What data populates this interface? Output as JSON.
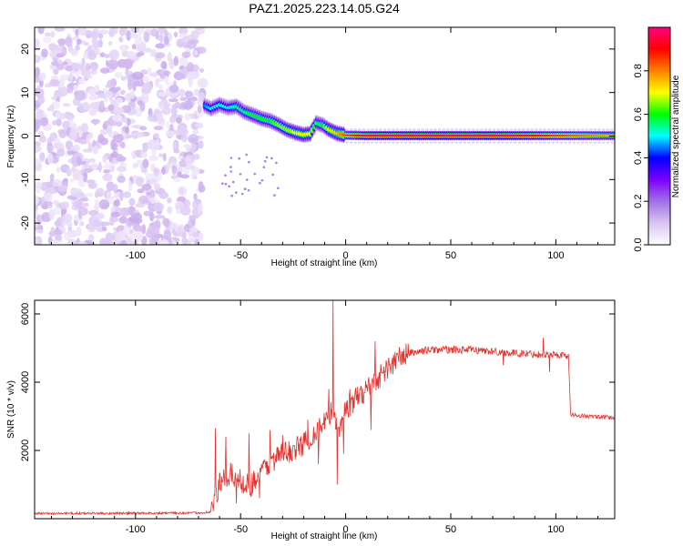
{
  "figure_title": "PAZ1.2025.223.14.05.G24",
  "chart_data": [
    {
      "type": "heatmap",
      "title": "",
      "xlabel": "Height of straight line (km)",
      "ylabel": "Frequency (Hz)",
      "xlim": [
        -148,
        128
      ],
      "ylim": [
        -25,
        25
      ],
      "xticks": [
        -100,
        -50,
        0,
        50,
        100
      ],
      "yticks": [
        -20,
        -10,
        0,
        10,
        20
      ],
      "colorbar": {
        "label": "Normalized spectral amplitude",
        "range": [
          0,
          1
        ],
        "ticks": [
          0.0,
          0.2,
          0.4,
          0.6,
          0.8
        ],
        "colors": [
          "#ffffff",
          "#d9c4f2",
          "#a070e6",
          "#7a00ff",
          "#0000ff",
          "#00ffff",
          "#00ff00",
          "#ffff00",
          "#ff7f00",
          "#ff0000",
          "#ff007f"
        ]
      },
      "noise_region": {
        "x_range": [
          -148,
          -68
        ],
        "f_range": [
          -25,
          25
        ],
        "amplitude": 0.2
      },
      "ridge": [
        {
          "x": -67,
          "f": 7.0,
          "a": 0.45
        },
        {
          "x": -64,
          "f": 6.3,
          "a": 0.5
        },
        {
          "x": -60,
          "f": 7.2,
          "a": 0.5
        },
        {
          "x": -56,
          "f": 6.5,
          "a": 0.5
        },
        {
          "x": -52,
          "f": 6.8,
          "a": 0.55
        },
        {
          "x": -48,
          "f": 5.5,
          "a": 0.55
        },
        {
          "x": -44,
          "f": 4.8,
          "a": 0.6
        },
        {
          "x": -40,
          "f": 4.0,
          "a": 0.6
        },
        {
          "x": -36,
          "f": 3.5,
          "a": 0.6
        },
        {
          "x": -32,
          "f": 2.6,
          "a": 0.65
        },
        {
          "x": -28,
          "f": 1.5,
          "a": 0.65
        },
        {
          "x": -24,
          "f": 0.8,
          "a": 0.7
        },
        {
          "x": -20,
          "f": 0.3,
          "a": 0.7
        },
        {
          "x": -17,
          "f": 0.5,
          "a": 0.7
        },
        {
          "x": -14,
          "f": 3.0,
          "a": 0.55
        },
        {
          "x": -11,
          "f": 2.5,
          "a": 0.6
        },
        {
          "x": -8,
          "f": 1.5,
          "a": 0.7
        },
        {
          "x": -4,
          "f": 0.6,
          "a": 0.75
        },
        {
          "x": 0,
          "f": 0.2,
          "a": 0.85
        },
        {
          "x": 10,
          "f": 0.1,
          "a": 0.95
        },
        {
          "x": 40,
          "f": 0.1,
          "a": 0.97
        },
        {
          "x": 80,
          "f": 0.1,
          "a": 0.95
        },
        {
          "x": 105,
          "f": 0.1,
          "a": 0.85
        },
        {
          "x": 128,
          "f": 0.1,
          "a": 0.75
        }
      ]
    },
    {
      "type": "line",
      "title": "",
      "xlabel": "Height of straight line (km)",
      "ylabel": "SNR (10 * v/v)",
      "xlim": [
        -148,
        128
      ],
      "ylim": [
        0,
        6400
      ],
      "xticks": [
        -100,
        -50,
        0,
        50,
        100
      ],
      "yticks": [
        2000,
        4000,
        6000
      ],
      "line_color": "#e8302c",
      "envelope": [
        {
          "x": -148,
          "y": 150
        },
        {
          "x": -100,
          "y": 160
        },
        {
          "x": -70,
          "y": 170
        },
        {
          "x": -64,
          "y": 200
        },
        {
          "x": -60,
          "y": 1000
        },
        {
          "x": -55,
          "y": 1300
        },
        {
          "x": -50,
          "y": 1100
        },
        {
          "x": -45,
          "y": 1000
        },
        {
          "x": -40,
          "y": 1400
        },
        {
          "x": -35,
          "y": 1700
        },
        {
          "x": -30,
          "y": 1900
        },
        {
          "x": -25,
          "y": 2000
        },
        {
          "x": -20,
          "y": 2200
        },
        {
          "x": -15,
          "y": 2500
        },
        {
          "x": -10,
          "y": 2800
        },
        {
          "x": -6,
          "y": 3200
        },
        {
          "x": -3,
          "y": 2600
        },
        {
          "x": 0,
          "y": 3200
        },
        {
          "x": 5,
          "y": 3500
        },
        {
          "x": 10,
          "y": 3800
        },
        {
          "x": 15,
          "y": 4100
        },
        {
          "x": 20,
          "y": 4400
        },
        {
          "x": 25,
          "y": 4700
        },
        {
          "x": 30,
          "y": 4850
        },
        {
          "x": 40,
          "y": 4950
        },
        {
          "x": 60,
          "y": 4950
        },
        {
          "x": 80,
          "y": 4850
        },
        {
          "x": 100,
          "y": 4800
        },
        {
          "x": 106,
          "y": 4780
        },
        {
          "x": 107,
          "y": 3050
        },
        {
          "x": 115,
          "y": 3000
        },
        {
          "x": 128,
          "y": 2950
        }
      ],
      "spikes": [
        {
          "x": -62,
          "y": 2650
        },
        {
          "x": -57,
          "y": 2400
        },
        {
          "x": -52,
          "y": 450
        },
        {
          "x": -46,
          "y": 2500
        },
        {
          "x": -41,
          "y": 600
        },
        {
          "x": -36,
          "y": 2600
        },
        {
          "x": -30,
          "y": 2450
        },
        {
          "x": -18,
          "y": 2900
        },
        {
          "x": -13,
          "y": 1600
        },
        {
          "x": -8,
          "y": 3800
        },
        {
          "x": -6,
          "y": 6400
        },
        {
          "x": -4,
          "y": 1000
        },
        {
          "x": -1,
          "y": 1900
        },
        {
          "x": 2,
          "y": 3800
        },
        {
          "x": 12,
          "y": 2600
        },
        {
          "x": 14,
          "y": 5200
        },
        {
          "x": 75,
          "y": 4500
        },
        {
          "x": 94,
          "y": 5300
        },
        {
          "x": 97,
          "y": 4300
        }
      ]
    }
  ]
}
